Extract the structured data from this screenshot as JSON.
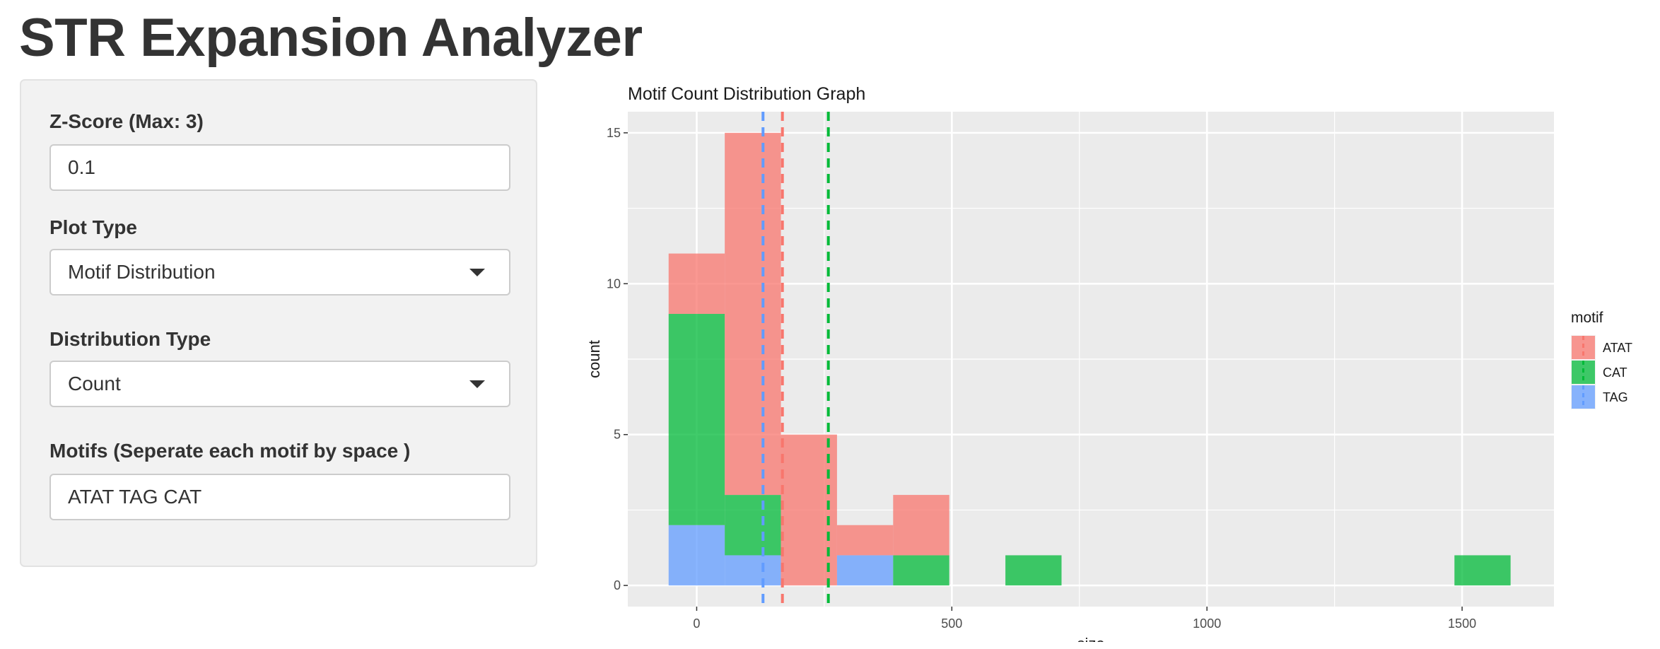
{
  "app": {
    "title": "STR Expansion Analyzer"
  },
  "sidebar": {
    "zscore": {
      "label": "Z-Score (Max: 3)",
      "value": "0.1"
    },
    "plot_type": {
      "label": "Plot Type",
      "value": "Motif Distribution"
    },
    "distribution_type": {
      "label": "Distribution Type",
      "value": "Count"
    },
    "motifs": {
      "label": "Motifs (Seperate each motif by space )",
      "value": "ATAT TAG CAT"
    }
  },
  "chart_data": {
    "type": "histogram",
    "title": "Motif Count Distribution Graph",
    "xlabel": "size",
    "ylabel": "count",
    "xlim": [
      -135,
      1680
    ],
    "ylim": [
      -0.7,
      15.7
    ],
    "x_ticks": [
      0,
      500,
      1000,
      1500
    ],
    "y_ticks": [
      0,
      5,
      10,
      15
    ],
    "grid": true,
    "stacked": true,
    "bin_width": 110,
    "bins": [
      {
        "x0": -55,
        "x1": 55
      },
      {
        "x0": 55,
        "x1": 165
      },
      {
        "x0": 165,
        "x1": 275
      },
      {
        "x0": 275,
        "x1": 385
      },
      {
        "x0": 385,
        "x1": 495
      },
      {
        "x0": 495,
        "x1": 605
      },
      {
        "x0": 605,
        "x1": 715
      },
      {
        "x0": 1485,
        "x1": 1595
      }
    ],
    "legend": {
      "title": "motif",
      "position": "right"
    },
    "series": [
      {
        "name": "ATAT",
        "color": "#F8766D",
        "counts": [
          2,
          12,
          5,
          1,
          2,
          0,
          0,
          0
        ],
        "mean_line": 168
      },
      {
        "name": "CAT",
        "color": "#00BA38",
        "counts": [
          7,
          2,
          0,
          0,
          1,
          0,
          1,
          1
        ],
        "mean_line": 258
      },
      {
        "name": "TAG",
        "color": "#619CFF",
        "counts": [
          2,
          1,
          0,
          1,
          0,
          0,
          0,
          0
        ],
        "mean_line": 130
      }
    ]
  }
}
